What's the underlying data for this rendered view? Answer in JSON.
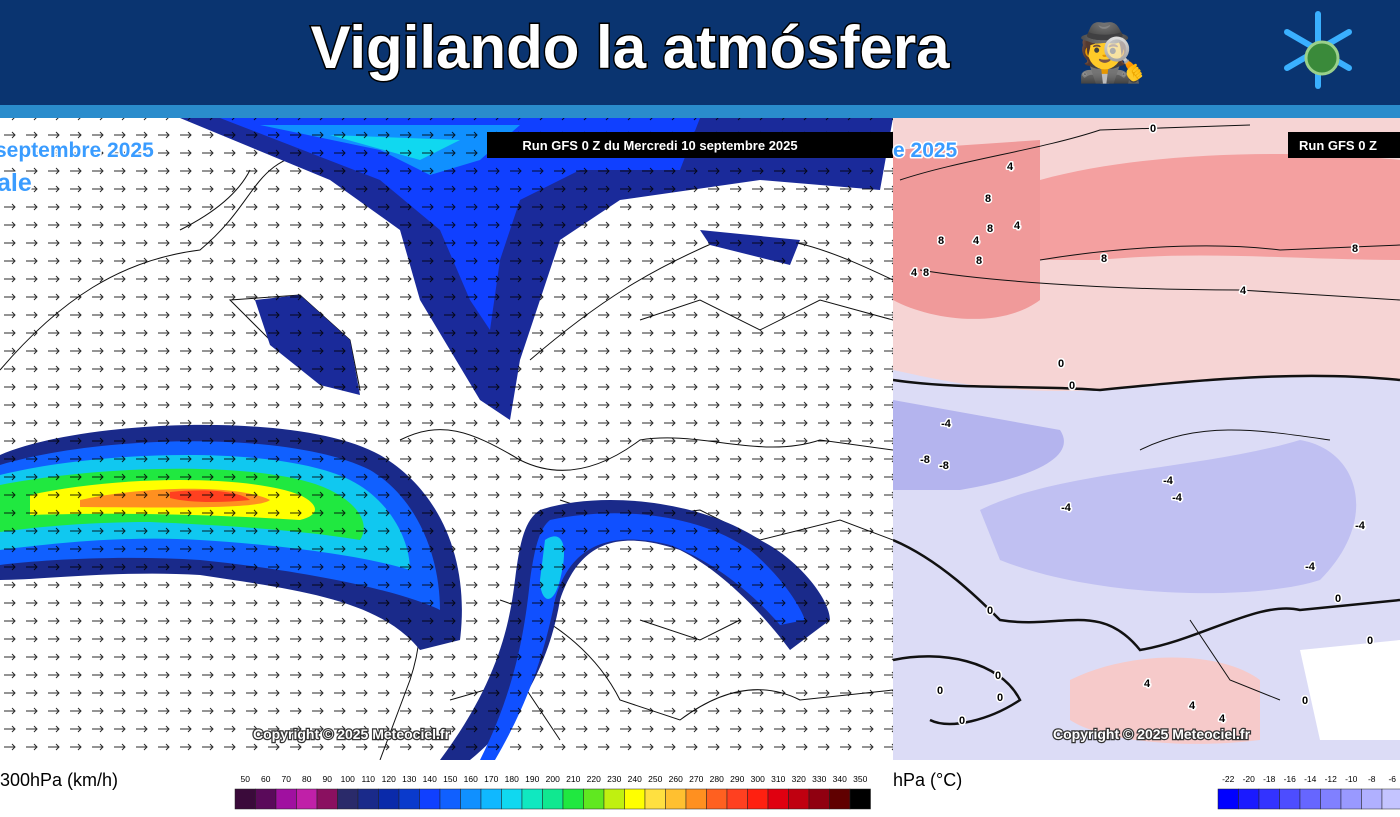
{
  "header": {
    "title": "Vigilando la atmósfera",
    "emoji": "🕵️"
  },
  "left_map": {
    "date_fragment": "septembre 2025",
    "level_fragment": "ale",
    "run_label": "Run GFS 0 Z du Mercredi 10 septembre 2025",
    "copyright": "Copyright © 2025 Meteociel.fr",
    "legend_title": "300hPa (km/h)",
    "colorbar": {
      "labels": [
        50,
        60,
        70,
        80,
        90,
        100,
        110,
        120,
        130,
        140,
        150,
        160,
        170,
        180,
        190,
        200,
        210,
        220,
        230,
        240,
        250,
        260,
        270,
        280,
        290,
        300,
        310,
        320,
        330,
        340,
        350
      ],
      "colors": [
        "#3a0a3a",
        "#5a0a5a",
        "#a010a0",
        "#c020a8",
        "#8a1060",
        "#2a2a6a",
        "#1a2a8a",
        "#0a2aaa",
        "#0a3acc",
        "#1040ff",
        "#1060ff",
        "#1090ff",
        "#10b8ff",
        "#10d8f0",
        "#10e8c0",
        "#10e890",
        "#20e840",
        "#60e820",
        "#c0f010",
        "#ffff00",
        "#ffe040",
        "#ffc030",
        "#ff9020",
        "#ff6020",
        "#ff4020",
        "#ff2010",
        "#e00010",
        "#c00010",
        "#900010",
        "#600000",
        "#000000"
      ]
    }
  },
  "right_map": {
    "date_fragment": "e 2025",
    "run_label": "Run GFS 0 Z",
    "copyright": "Copyright © 2025 Meteociel.fr",
    "legend_title": "hPa (°C)",
    "colorbar": {
      "labels": [
        -22,
        -20,
        -18,
        -16,
        -14,
        -12,
        -10,
        -8,
        -6,
        "-"
      ],
      "colors": [
        "#0000ff",
        "#1a1aff",
        "#3333ff",
        "#4d4dff",
        "#6666ff",
        "#8080ff",
        "#9999ff",
        "#b0b0ff",
        "#c4c4ff",
        "#d6d6ff"
      ]
    },
    "contour_labels": [
      0,
      4,
      8,
      8,
      4,
      8,
      4,
      8,
      4,
      8,
      8,
      8,
      4,
      0,
      0,
      -4,
      -8,
      -8,
      -4,
      -4,
      -4,
      -4,
      -4,
      0,
      0,
      0,
      0,
      0,
      4,
      4,
      4,
      0,
      0,
      0
    ]
  }
}
